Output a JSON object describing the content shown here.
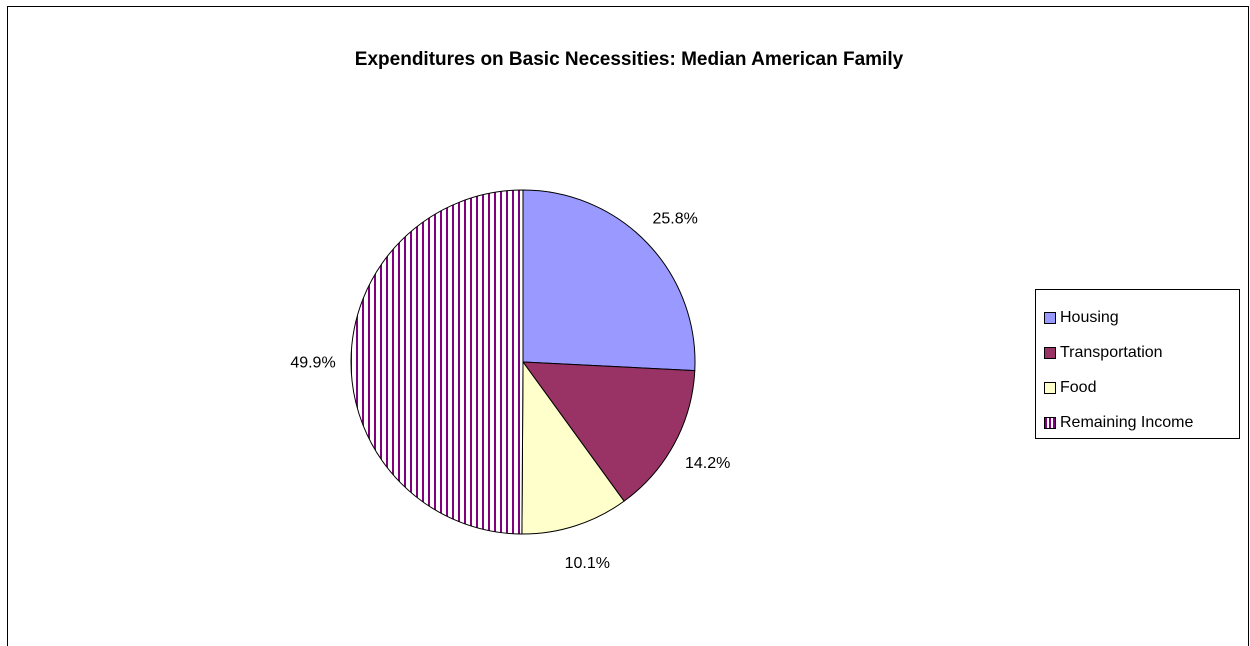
{
  "chart_data": {
    "type": "pie",
    "title": "Expenditures on Basic Necessities: Median American Family",
    "slices": [
      {
        "name": "Housing",
        "value": 25.8,
        "label": "25.8%",
        "color": "#9999ff",
        "pattern": "solid"
      },
      {
        "name": "Transportation",
        "value": 14.2,
        "label": "14.2%",
        "color": "#993366",
        "pattern": "solid"
      },
      {
        "name": "Food",
        "value": 10.1,
        "label": "10.1%",
        "color": "#ffffcc",
        "pattern": "solid"
      },
      {
        "name": "Remaining Income",
        "value": 49.9,
        "label": "49.9%",
        "color": "#800080",
        "pattern": "vertical-stripes"
      }
    ],
    "legend_position": "right"
  }
}
